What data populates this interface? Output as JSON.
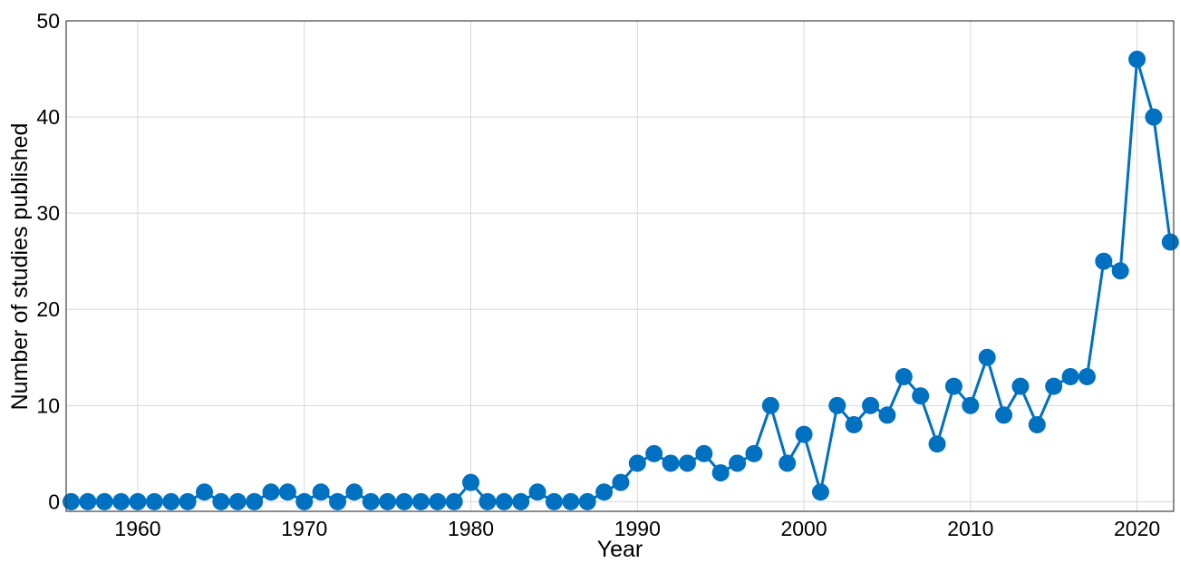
{
  "chart_data": {
    "type": "line",
    "title": "",
    "xlabel": "Year",
    "ylabel": "Number of studies published",
    "xlim": [
      1955.7,
      1922.2
    ],
    "ylim": [
      -1,
      50
    ],
    "x_ticks": [
      1960,
      1970,
      1980,
      1990,
      2000,
      2010,
      2020
    ],
    "y_ticks": [
      0,
      10,
      20,
      30,
      40,
      50
    ],
    "grid": true,
    "marker": "circle",
    "colors": {
      "series": "#0070c0"
    },
    "series": [
      {
        "x": [
          1956,
          1957,
          1958,
          1959,
          1960,
          1961,
          1962,
          1963,
          1964,
          1965,
          1966,
          1967,
          1968,
          1969,
          1970,
          1971,
          1972,
          1973,
          1974,
          1975,
          1976,
          1977,
          1978,
          1979,
          1980,
          1981,
          1982,
          1983,
          1984,
          1985,
          1986,
          1987,
          1988,
          1989,
          1990,
          1991,
          1992,
          1993,
          1994,
          1995,
          1996,
          1997,
          1998,
          1999,
          2000,
          2001,
          2002,
          2003,
          2004,
          2005,
          2006,
          2007,
          2008,
          2009,
          2010,
          2011,
          2012,
          2013,
          2014,
          2015,
          2016,
          2017,
          2018,
          2019,
          2020,
          2021,
          2022
        ],
        "values": [
          0,
          0,
          0,
          0,
          0,
          0,
          0,
          0,
          1,
          0,
          0,
          0,
          1,
          1,
          0,
          1,
          0,
          1,
          0,
          0,
          0,
          0,
          0,
          0,
          2,
          0,
          0,
          0,
          1,
          0,
          0,
          0,
          1,
          2,
          4,
          5,
          4,
          4,
          5,
          3,
          4,
          5,
          10,
          4,
          7,
          1,
          10,
          8,
          10,
          9,
          13,
          11,
          6,
          12,
          10,
          15,
          9,
          12,
          8,
          12,
          13,
          13,
          25,
          24,
          46,
          40,
          27
        ]
      }
    ]
  }
}
